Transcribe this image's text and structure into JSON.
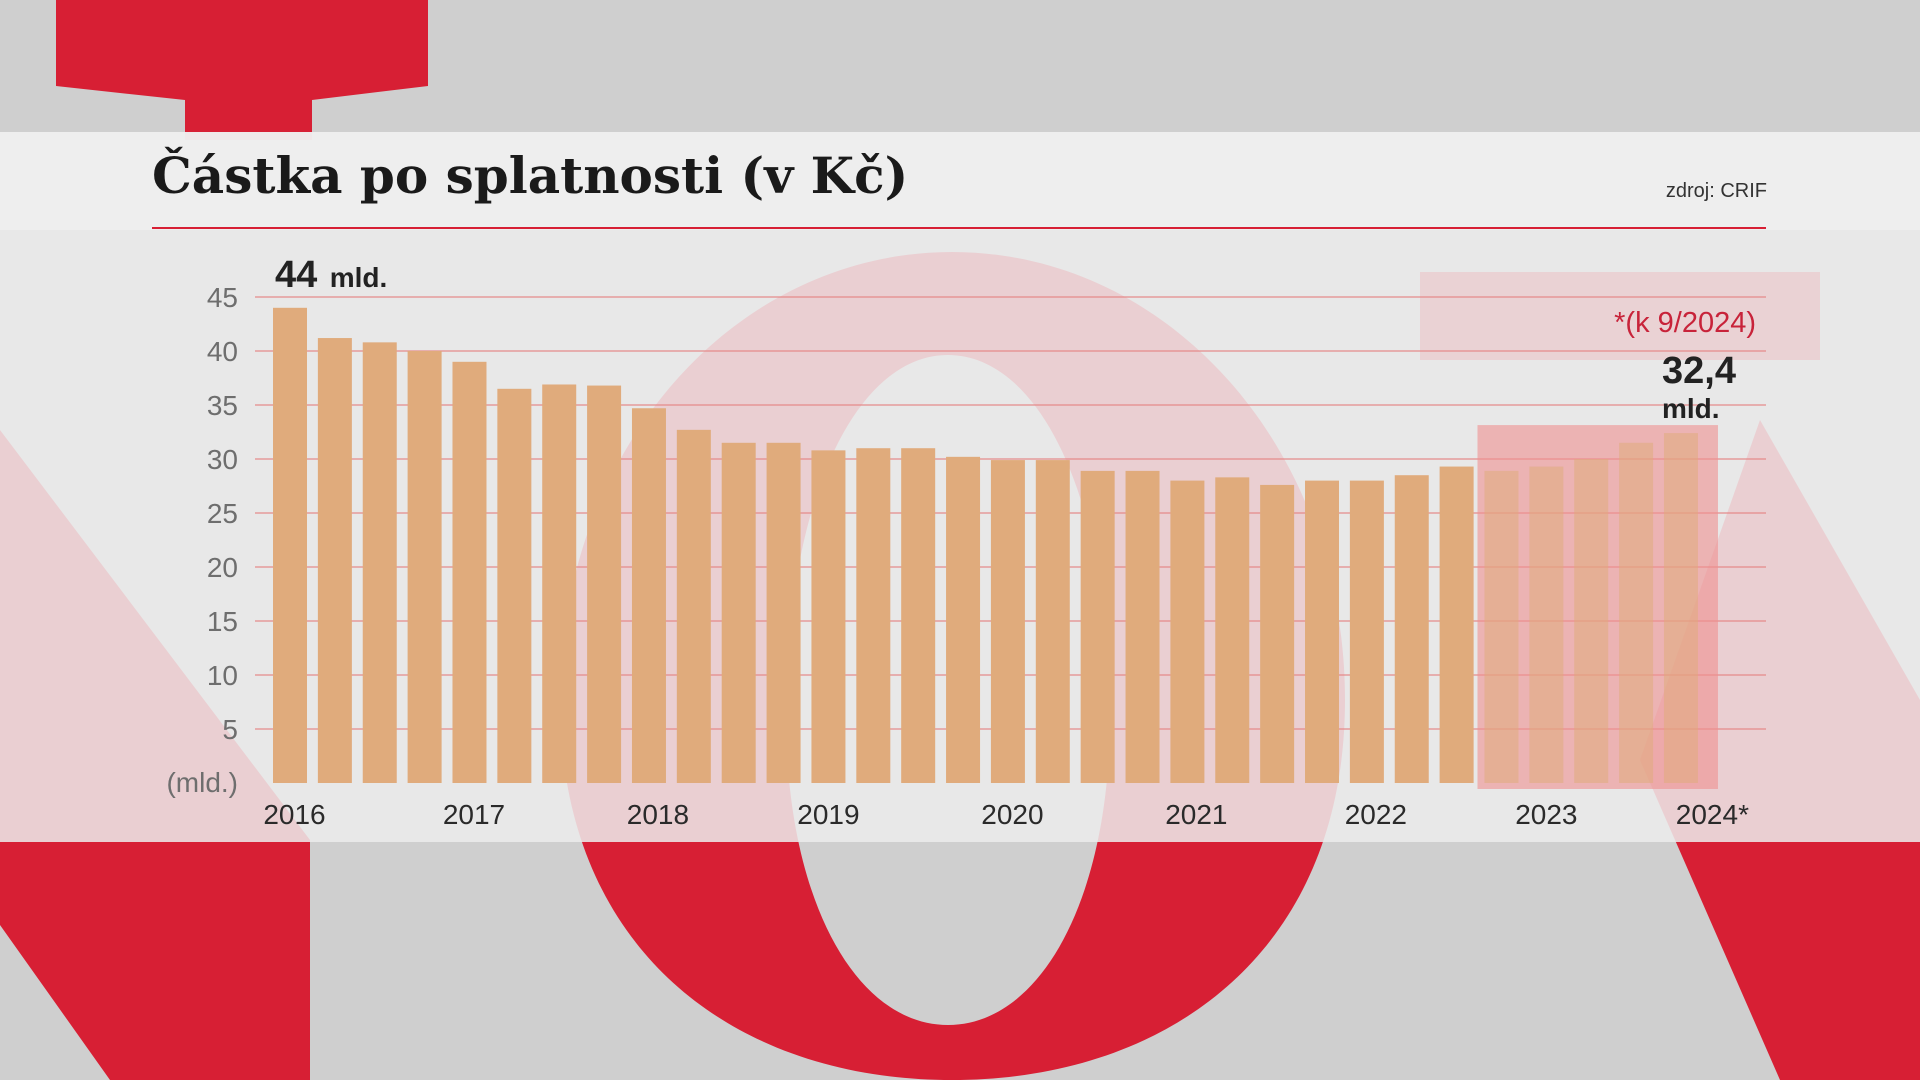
{
  "title": "Částka po splatnosti (v Kč)",
  "source": "zdroj: CRIF",
  "colors": {
    "bar": "#e0ab7c",
    "highlight_box": "#ee8f8f",
    "accent_red": "#d71f34",
    "gridline": "#e58a8a"
  },
  "chart_data": {
    "type": "bar",
    "title": "Částka po splatnosti (v Kč)",
    "ylabel": "(mld.)",
    "ylim": [
      0,
      45
    ],
    "yticks": [
      5,
      10,
      15,
      20,
      25,
      30,
      35,
      40,
      45
    ],
    "grid": true,
    "year_labels": [
      {
        "label": "2016",
        "center_bar": 0.1
      },
      {
        "label": "2017",
        "center_bar": 4.1
      },
      {
        "label": "2018",
        "center_bar": 8.2
      },
      {
        "label": "2019",
        "center_bar": 12.0
      },
      {
        "label": "2020",
        "center_bar": 16.1
      },
      {
        "label": "2021",
        "center_bar": 20.2
      },
      {
        "label": "2022",
        "center_bar": 24.2
      },
      {
        "label": "2023",
        "center_bar": 28.0
      },
      {
        "label": "2024*",
        "center_bar": 31.7,
        "highlighted": true
      }
    ],
    "values": [
      44.0,
      41.2,
      40.8,
      40.0,
      39.0,
      36.5,
      36.9,
      36.8,
      34.7,
      32.7,
      31.5,
      31.5,
      30.8,
      31.0,
      31.0,
      30.2,
      29.9,
      29.9,
      28.9,
      28.9,
      28.0,
      28.3,
      27.6,
      28.0,
      28.0,
      28.5,
      29.3,
      28.9,
      29.3,
      30.0,
      31.5,
      32.4
    ],
    "highlighted_range": [
      27,
      31
    ],
    "annotations": {
      "start_value": "44",
      "start_unit": "mld.",
      "end_value": "32,4",
      "end_unit": "mld.",
      "note": "*(k 9/2024)"
    }
  }
}
